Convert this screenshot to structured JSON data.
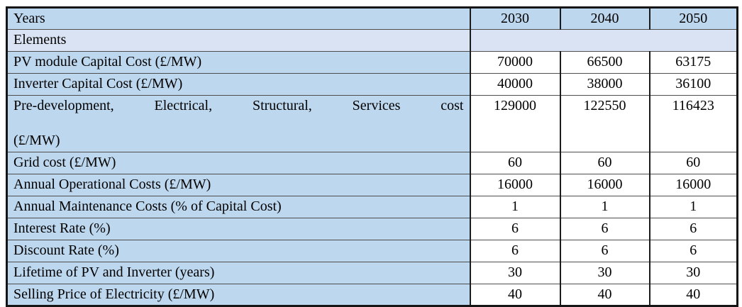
{
  "table": {
    "header": {
      "label": "Years",
      "years": [
        "2030",
        "2040",
        "2050"
      ]
    },
    "elements_label": "Elements",
    "rows": [
      {
        "label": "PV module Capital Cost (£/MW)",
        "values": [
          "70000",
          "66500",
          "63175"
        ]
      },
      {
        "label": "Inverter Capital Cost (£/MW)",
        "values": [
          "40000",
          "38000",
          "36100"
        ]
      },
      {
        "label_lines": [
          "Pre-development, Electrical, Structural, Services cost",
          "(£/MW)"
        ],
        "values": [
          "129000",
          "122550",
          "116423"
        ]
      },
      {
        "label": "Grid cost (£/MW)",
        "values": [
          "60",
          "60",
          "60"
        ]
      },
      {
        "label": "Annual Operational Costs (£/MW)",
        "values": [
          "16000",
          "16000",
          "16000"
        ]
      },
      {
        "label": "Annual Maintenance Costs (% of Capital Cost)",
        "values": [
          "1",
          "1",
          "1"
        ]
      },
      {
        "label": "Interest Rate (%)",
        "values": [
          "6",
          "6",
          "6"
        ]
      },
      {
        "label": "Discount Rate (%)",
        "values": [
          "6",
          "6",
          "6"
        ]
      },
      {
        "label": "Lifetime of PV and Inverter (years)",
        "values": [
          "30",
          "30",
          "30"
        ]
      },
      {
        "label": "Selling Price of Electricity (£/MW)",
        "values": [
          "40",
          "40",
          "40"
        ]
      }
    ],
    "colors": {
      "header_blue": "#bdd7ee",
      "elements_light": "#dae3f3",
      "cell_white": "#ffffff",
      "border_dark": "#1c1c1c"
    }
  }
}
